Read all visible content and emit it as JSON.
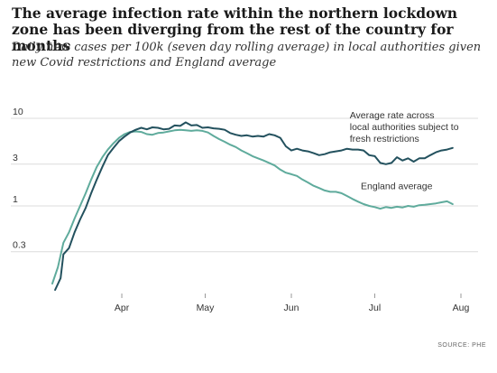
{
  "colors": {
    "lockdown": "#23515e",
    "england": "#5fab9c",
    "grid": "#dcdcdc",
    "text": "#333333"
  },
  "chart_data": {
    "type": "line",
    "title": "The average infection rate within the northern lockdown zone has been diverging from the rest of the country for months",
    "subtitle": "Daily new cases per 100k (seven day rolling average) in local authorities given new Covid restrictions and England average",
    "source": "SOURCE: PHE",
    "y_scale": "log",
    "ylim": [
      0.1,
      13
    ],
    "y_ticks": [
      {
        "value": 10,
        "label": "10"
      },
      {
        "value": 3,
        "label": "3"
      },
      {
        "value": 1,
        "label": "1"
      },
      {
        "value": 0.3,
        "label": "0.3"
      }
    ],
    "xlim": [
      "2020-03-07",
      "2020-08-01"
    ],
    "x_ticks": [
      {
        "value": "2020-04-01",
        "label": "Apr"
      },
      {
        "value": "2020-05-01",
        "label": "May"
      },
      {
        "value": "2020-06-01",
        "label": "Jun"
      },
      {
        "value": "2020-07-01",
        "label": "Jul"
      },
      {
        "value": "2020-08-01",
        "label": "Aug"
      }
    ],
    "grid": "horizontal",
    "series": [
      {
        "name": "Average rate across local authorities subject to fresh restrictions",
        "color_key": "lockdown",
        "label_anchor": {
          "x": "2020-06-22",
          "y": 10
        },
        "points": [
          [
            "2020-03-08",
            0.11
          ],
          [
            "2020-03-10",
            0.15
          ],
          [
            "2020-03-11",
            0.28
          ],
          [
            "2020-03-13",
            0.33
          ],
          [
            "2020-03-15",
            0.5
          ],
          [
            "2020-03-17",
            0.7
          ],
          [
            "2020-03-19",
            0.95
          ],
          [
            "2020-03-21",
            1.4
          ],
          [
            "2020-03-23",
            2.0
          ],
          [
            "2020-03-25",
            2.8
          ],
          [
            "2020-03-27",
            3.8
          ],
          [
            "2020-03-29",
            4.6
          ],
          [
            "2020-03-31",
            5.5
          ],
          [
            "2020-04-02",
            6.2
          ],
          [
            "2020-04-04",
            6.9
          ],
          [
            "2020-04-06",
            7.4
          ],
          [
            "2020-04-08",
            7.8
          ],
          [
            "2020-04-10",
            7.5
          ],
          [
            "2020-04-12",
            7.9
          ],
          [
            "2020-04-14",
            7.8
          ],
          [
            "2020-04-16",
            7.5
          ],
          [
            "2020-04-18",
            7.6
          ],
          [
            "2020-04-20",
            8.3
          ],
          [
            "2020-04-22",
            8.2
          ],
          [
            "2020-04-24",
            9.0
          ],
          [
            "2020-04-26",
            8.3
          ],
          [
            "2020-04-28",
            8.4
          ],
          [
            "2020-04-30",
            7.8
          ],
          [
            "2020-05-02",
            7.9
          ],
          [
            "2020-05-04",
            7.7
          ],
          [
            "2020-05-06",
            7.6
          ],
          [
            "2020-05-08",
            7.4
          ],
          [
            "2020-05-10",
            6.8
          ],
          [
            "2020-05-12",
            6.5
          ],
          [
            "2020-05-14",
            6.3
          ],
          [
            "2020-05-16",
            6.4
          ],
          [
            "2020-05-18",
            6.2
          ],
          [
            "2020-05-20",
            6.3
          ],
          [
            "2020-05-22",
            6.2
          ],
          [
            "2020-05-24",
            6.6
          ],
          [
            "2020-05-26",
            6.4
          ],
          [
            "2020-05-28",
            6.0
          ],
          [
            "2020-05-30",
            4.8
          ],
          [
            "2020-06-01",
            4.3
          ],
          [
            "2020-06-03",
            4.5
          ],
          [
            "2020-06-05",
            4.3
          ],
          [
            "2020-06-07",
            4.2
          ],
          [
            "2020-06-09",
            4.0
          ],
          [
            "2020-06-11",
            3.8
          ],
          [
            "2020-06-13",
            3.9
          ],
          [
            "2020-06-15",
            4.1
          ],
          [
            "2020-06-17",
            4.2
          ],
          [
            "2020-06-19",
            4.3
          ],
          [
            "2020-06-21",
            4.5
          ],
          [
            "2020-06-23",
            4.4
          ],
          [
            "2020-06-25",
            4.4
          ],
          [
            "2020-06-27",
            4.3
          ],
          [
            "2020-06-29",
            3.8
          ],
          [
            "2020-07-01",
            3.7
          ],
          [
            "2020-07-03",
            3.1
          ],
          [
            "2020-07-05",
            3.0
          ],
          [
            "2020-07-07",
            3.1
          ],
          [
            "2020-07-09",
            3.6
          ],
          [
            "2020-07-11",
            3.3
          ],
          [
            "2020-07-13",
            3.5
          ],
          [
            "2020-07-15",
            3.2
          ],
          [
            "2020-07-17",
            3.5
          ],
          [
            "2020-07-19",
            3.5
          ],
          [
            "2020-07-21",
            3.8
          ],
          [
            "2020-07-23",
            4.1
          ],
          [
            "2020-07-25",
            4.3
          ],
          [
            "2020-07-27",
            4.4
          ],
          [
            "2020-07-29",
            4.6
          ]
        ]
      },
      {
        "name": "England average",
        "color_key": "england",
        "label_anchor": {
          "x": "2020-06-26",
          "y": 1.55
        },
        "points": [
          [
            "2020-03-07",
            0.13
          ],
          [
            "2020-03-09",
            0.2
          ],
          [
            "2020-03-11",
            0.38
          ],
          [
            "2020-03-13",
            0.5
          ],
          [
            "2020-03-15",
            0.72
          ],
          [
            "2020-03-17",
            1.0
          ],
          [
            "2020-03-19",
            1.4
          ],
          [
            "2020-03-21",
            2.0
          ],
          [
            "2020-03-23",
            2.8
          ],
          [
            "2020-03-25",
            3.6
          ],
          [
            "2020-03-27",
            4.4
          ],
          [
            "2020-03-29",
            5.2
          ],
          [
            "2020-03-31",
            6.0
          ],
          [
            "2020-04-02",
            6.6
          ],
          [
            "2020-04-04",
            7.0
          ],
          [
            "2020-04-06",
            7.1
          ],
          [
            "2020-04-08",
            7.0
          ],
          [
            "2020-04-10",
            6.6
          ],
          [
            "2020-04-12",
            6.5
          ],
          [
            "2020-04-14",
            6.8
          ],
          [
            "2020-04-16",
            6.9
          ],
          [
            "2020-04-18",
            7.1
          ],
          [
            "2020-04-20",
            7.3
          ],
          [
            "2020-04-22",
            7.4
          ],
          [
            "2020-04-24",
            7.3
          ],
          [
            "2020-04-26",
            7.2
          ],
          [
            "2020-04-28",
            7.3
          ],
          [
            "2020-04-30",
            7.2
          ],
          [
            "2020-05-02",
            6.9
          ],
          [
            "2020-05-04",
            6.3
          ],
          [
            "2020-05-06",
            5.8
          ],
          [
            "2020-05-08",
            5.4
          ],
          [
            "2020-05-10",
            5.0
          ],
          [
            "2020-05-12",
            4.7
          ],
          [
            "2020-05-14",
            4.3
          ],
          [
            "2020-05-16",
            4.0
          ],
          [
            "2020-05-18",
            3.7
          ],
          [
            "2020-05-20",
            3.5
          ],
          [
            "2020-05-22",
            3.3
          ],
          [
            "2020-05-24",
            3.1
          ],
          [
            "2020-05-26",
            2.9
          ],
          [
            "2020-05-28",
            2.6
          ],
          [
            "2020-05-30",
            2.4
          ],
          [
            "2020-06-01",
            2.3
          ],
          [
            "2020-06-03",
            2.2
          ],
          [
            "2020-06-05",
            2.0
          ],
          [
            "2020-06-07",
            1.85
          ],
          [
            "2020-06-09",
            1.7
          ],
          [
            "2020-06-11",
            1.6
          ],
          [
            "2020-06-13",
            1.5
          ],
          [
            "2020-06-15",
            1.45
          ],
          [
            "2020-06-17",
            1.45
          ],
          [
            "2020-06-19",
            1.4
          ],
          [
            "2020-06-21",
            1.3
          ],
          [
            "2020-06-23",
            1.2
          ],
          [
            "2020-06-25",
            1.12
          ],
          [
            "2020-06-27",
            1.05
          ],
          [
            "2020-06-29",
            1.0
          ],
          [
            "2020-07-01",
            0.97
          ],
          [
            "2020-07-03",
            0.93
          ],
          [
            "2020-07-05",
            0.97
          ],
          [
            "2020-07-07",
            0.95
          ],
          [
            "2020-07-09",
            0.98
          ],
          [
            "2020-07-11",
            0.96
          ],
          [
            "2020-07-13",
            1.0
          ],
          [
            "2020-07-15",
            0.98
          ],
          [
            "2020-07-17",
            1.02
          ],
          [
            "2020-07-19",
            1.03
          ],
          [
            "2020-07-21",
            1.05
          ],
          [
            "2020-07-23",
            1.07
          ],
          [
            "2020-07-25",
            1.1
          ],
          [
            "2020-07-27",
            1.13
          ],
          [
            "2020-07-29",
            1.05
          ]
        ]
      }
    ]
  }
}
